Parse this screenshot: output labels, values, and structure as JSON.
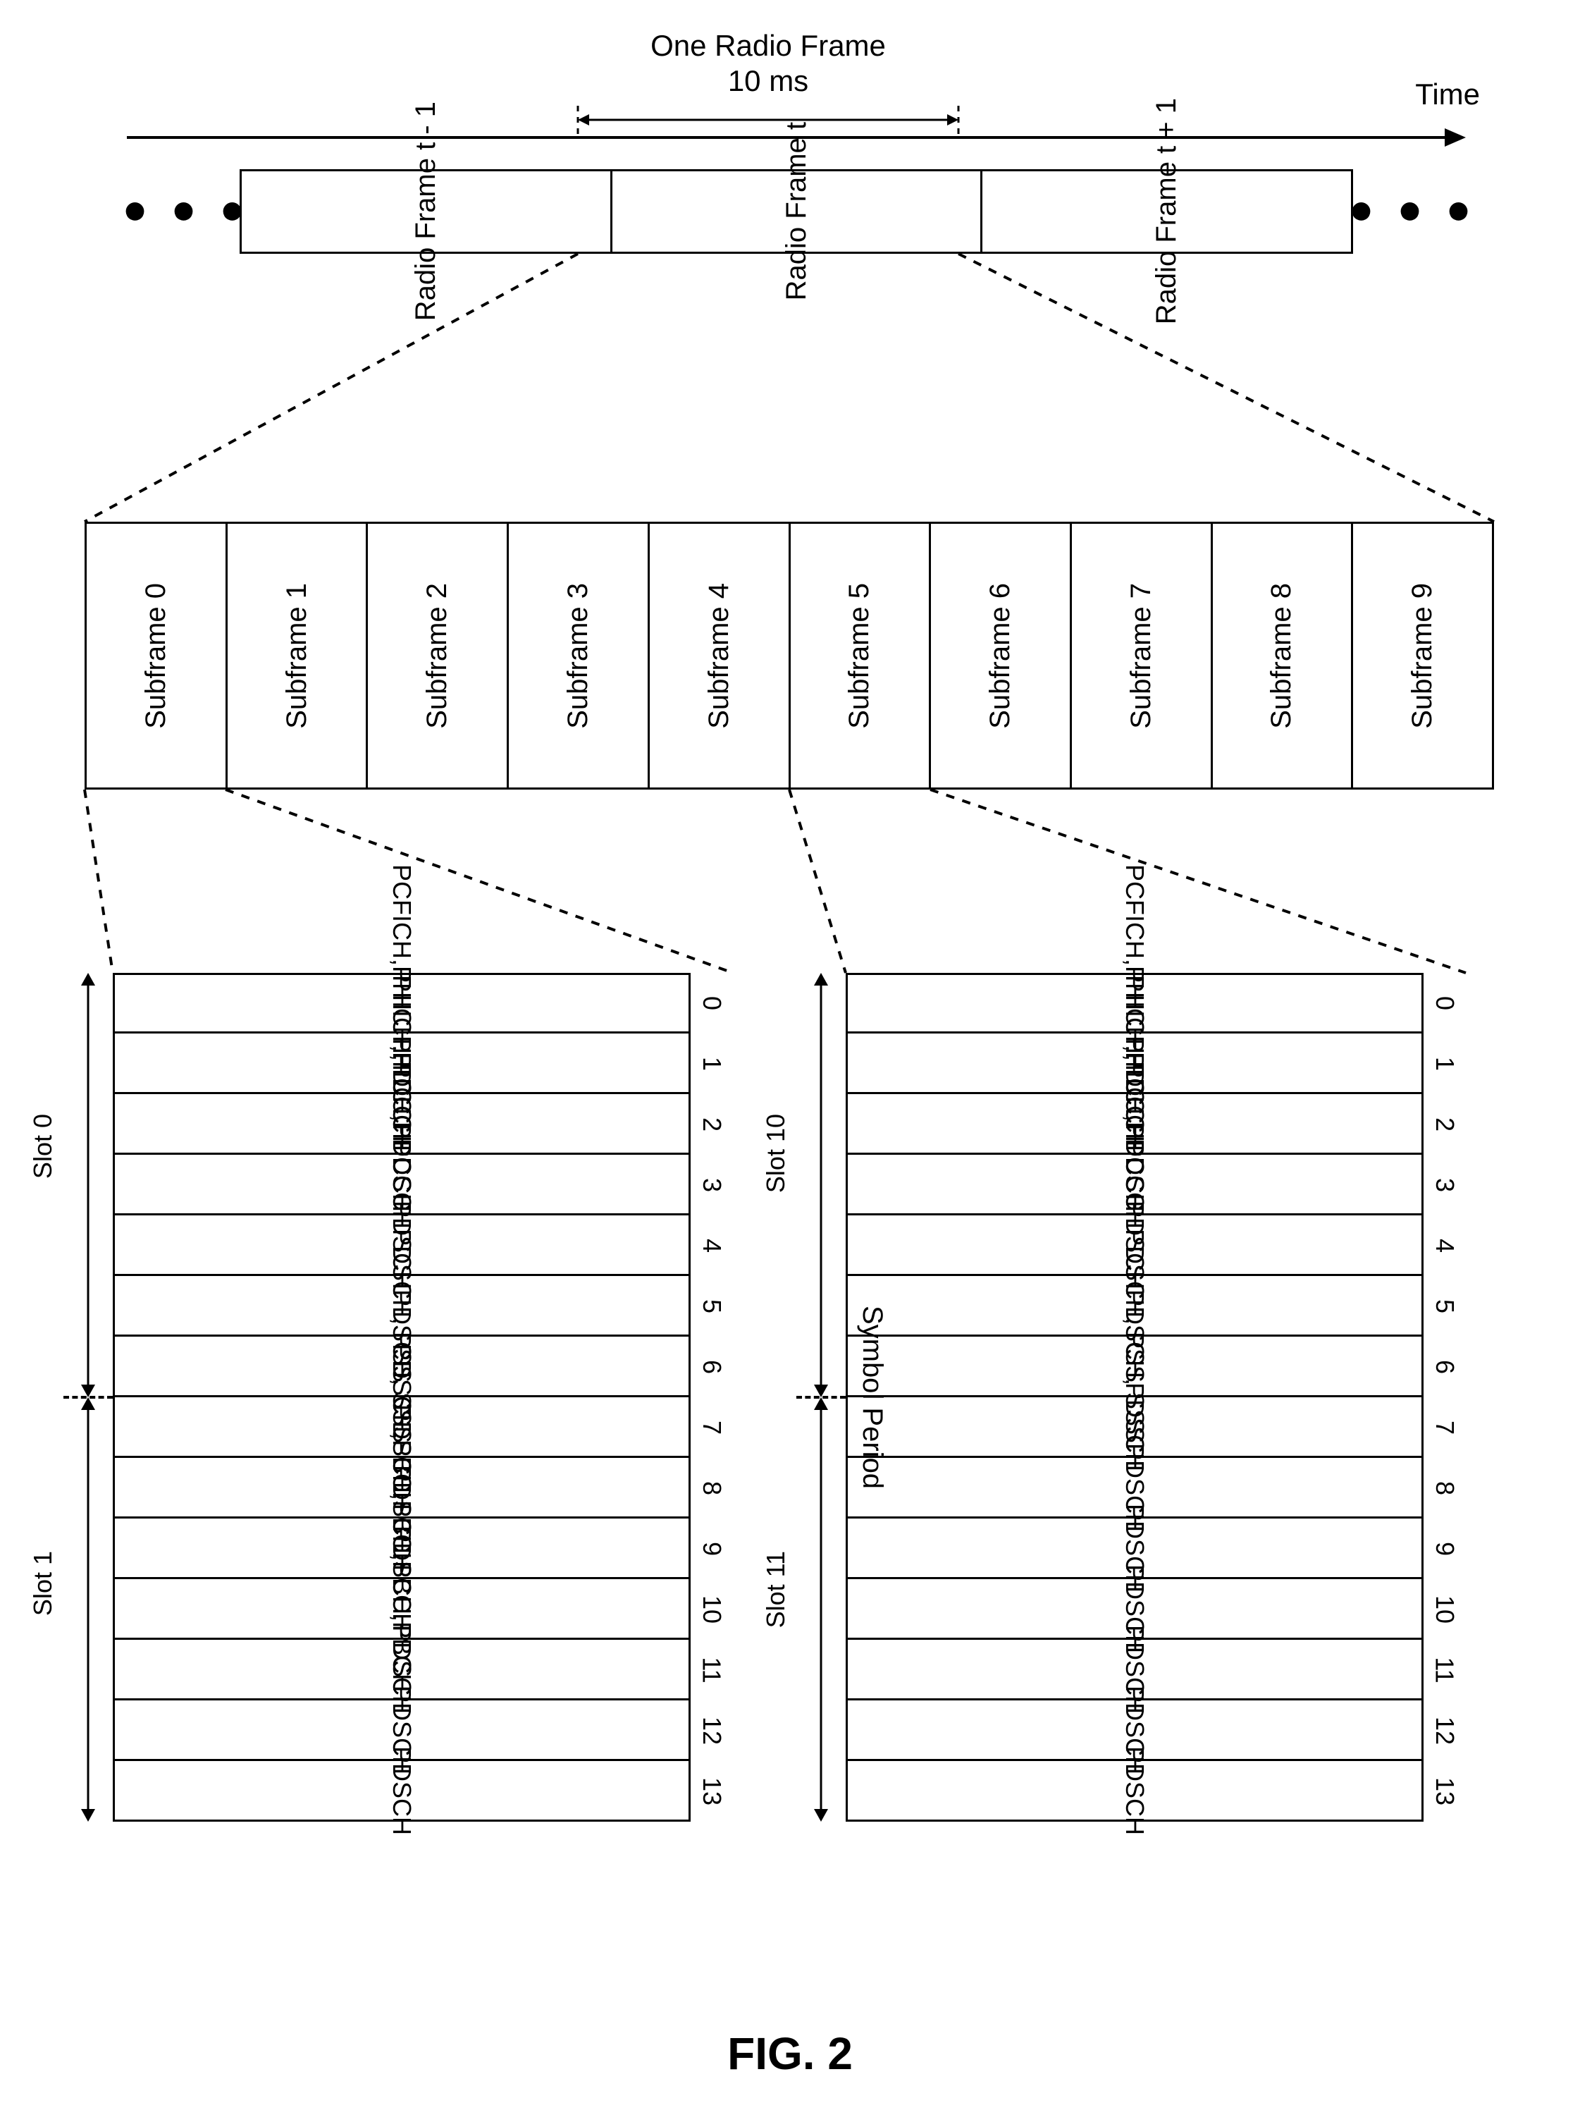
{
  "figure_label": "FIG. 2",
  "time_axis_label": "Time",
  "one_frame": {
    "title": "One Radio Frame",
    "duration": "10 ms"
  },
  "radio_frames": {
    "prev": "Radio Frame t - 1",
    "curr": "Radio Frame t",
    "next": "Radio Frame t + 1"
  },
  "subframes": [
    "Subframe 0",
    "Subframe 1",
    "Subframe 2",
    "Subframe 3",
    "Subframe 4",
    "Subframe 5",
    "Subframe 6",
    "Subframe 7",
    "Subframe 8",
    "Subframe 9"
  ],
  "symbol_period_label": "Symbol Period",
  "subframe0": {
    "slot_a": "Slot 0",
    "slot_b": "Slot 1",
    "symbols": [
      {
        "idx": "0",
        "ch": "PCFICH,PHICH,PDCCH"
      },
      {
        "idx": "1",
        "ch": "PHICH,PDCCH"
      },
      {
        "idx": "2",
        "ch": "PHICH,PDCCH"
      },
      {
        "idx": "3",
        "ch": "PDSCH"
      },
      {
        "idx": "4",
        "ch": "PDSCH"
      },
      {
        "idx": "5",
        "ch": "PDSCH, PSS"
      },
      {
        "idx": "6",
        "ch": "PDSCH, SSS"
      },
      {
        "idx": "7",
        "ch": "PDSCH,PBCH"
      },
      {
        "idx": "8",
        "ch": "PDSCH,PBCH"
      },
      {
        "idx": "9",
        "ch": "PDSCH,PBCH"
      },
      {
        "idx": "10",
        "ch": "PDSCH,PBCH"
      },
      {
        "idx": "11",
        "ch": "PDSCH"
      },
      {
        "idx": "12",
        "ch": "PDSCH"
      },
      {
        "idx": "13",
        "ch": "PDSCH"
      }
    ]
  },
  "subframe5": {
    "slot_a": "Slot 10",
    "slot_b": "Slot 11",
    "symbols": [
      {
        "idx": "0",
        "ch": "PCFICH,PHICH,PDCCH"
      },
      {
        "idx": "1",
        "ch": "PHICH,PDCCH"
      },
      {
        "idx": "2",
        "ch": "PHICH,PDCCH"
      },
      {
        "idx": "3",
        "ch": "PDSCH"
      },
      {
        "idx": "4",
        "ch": "PDSCH"
      },
      {
        "idx": "5",
        "ch": "PDSCH, PSS"
      },
      {
        "idx": "6",
        "ch": "PDSCH, SSS"
      },
      {
        "idx": "7",
        "ch": "PDSCH"
      },
      {
        "idx": "8",
        "ch": "PDSCH"
      },
      {
        "idx": "9",
        "ch": "PDSCH"
      },
      {
        "idx": "10",
        "ch": "PDSCH"
      },
      {
        "idx": "11",
        "ch": "PDSCH"
      },
      {
        "idx": "12",
        "ch": "PDSCH"
      },
      {
        "idx": "13",
        "ch": "PDSCH"
      }
    ]
  },
  "style": {
    "stroke": "#000000",
    "stroke_width": 3,
    "dash": "10,10",
    "font_family": "Arial",
    "bg": "#ffffff"
  },
  "ellipsis": "● ● ●"
}
